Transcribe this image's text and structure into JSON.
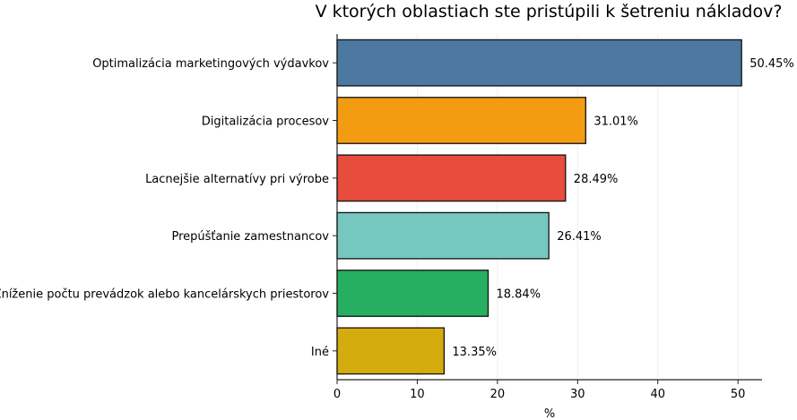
{
  "chart_data": {
    "type": "bar",
    "orientation": "horizontal",
    "title": "V ktorých oblastiach ste pristúpili k šetreniu nákladov?",
    "xlabel": "%",
    "ylabel": "",
    "xlim": [
      0,
      53
    ],
    "xticks": [
      0,
      10,
      20,
      30,
      40,
      50
    ],
    "grid": "vertical",
    "categories": [
      "Optimalizácia marketingových výdavkov",
      "Digitalizácia procesov",
      "Lacnejšie alternatívy pri výrobe",
      "Prepúšťanie zamestnancov",
      "Zníženie počtu prevádzok alebo kancelárskych priestorov",
      "Iné"
    ],
    "values": [
      50.45,
      31.01,
      28.49,
      26.41,
      18.84,
      13.35
    ],
    "data_labels": [
      "50.45%",
      "31.01%",
      "28.49%",
      "26.41%",
      "18.84%",
      "13.35%"
    ],
    "colors": [
      "#4c78a1",
      "#f39c12",
      "#e74c3c",
      "#76c7c0",
      "#27ae60",
      "#d4ac0d"
    ]
  }
}
